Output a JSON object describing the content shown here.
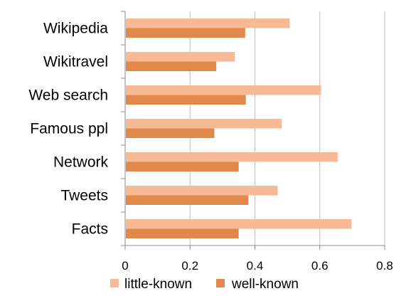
{
  "chart_data": {
    "type": "bar",
    "orientation": "horizontal",
    "title": "",
    "xlabel": "",
    "ylabel": "",
    "categories": [
      "Wikipedia",
      "Wikitravel",
      "Web search",
      "Famous ppl",
      "Network",
      "Tweets",
      "Facts"
    ],
    "series": [
      {
        "name": "little-known",
        "color": "#f8b995",
        "values": [
          0.507,
          0.338,
          0.604,
          0.483,
          0.655,
          0.47,
          0.698
        ]
      },
      {
        "name": "well-known",
        "color": "#e0894a",
        "values": [
          0.37,
          0.281,
          0.372,
          0.275,
          0.35,
          0.38,
          0.35
        ]
      }
    ],
    "xlim": [
      0,
      0.8
    ],
    "xticks": [
      0,
      0.2,
      0.4,
      0.6,
      0.8
    ],
    "xtick_labels": [
      "0",
      "0.2",
      "0.4",
      "0.6",
      "0.8"
    ],
    "grid": "vertical",
    "legend_position": "bottom"
  }
}
